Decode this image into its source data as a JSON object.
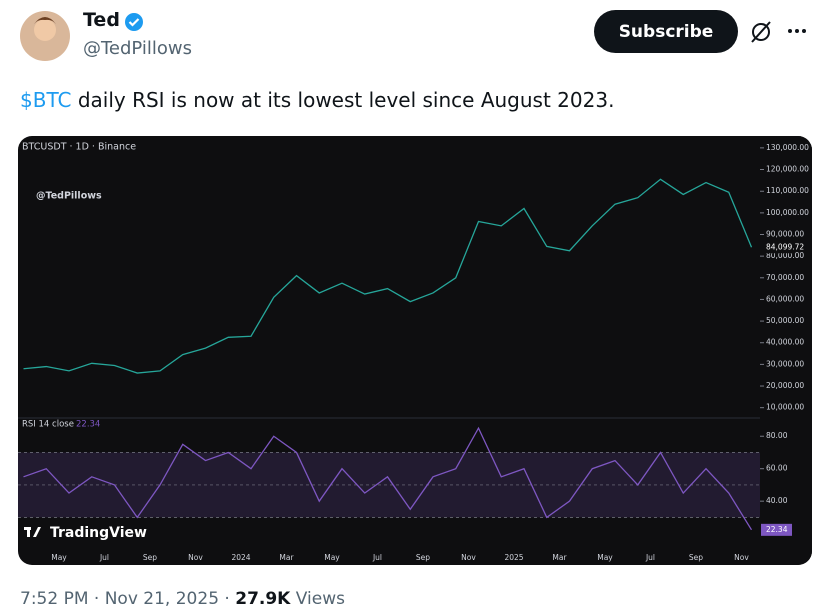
{
  "author": {
    "name": "Ted",
    "handle": "@TedPillows"
  },
  "subscribe_button": "Subscribe",
  "tweet_text": {
    "cashtag": "$BTC",
    "text": " daily RSI is now at its lowest level since August 2023."
  },
  "chart_data": {
    "type": "line",
    "source_label": "BTCUSDT · 1D · Binance",
    "watermark": "@TedPillows",
    "brand": "TradingView",
    "x_axis_labels": [
      "May",
      "Jul",
      "Sep",
      "Nov",
      "2024",
      "Mar",
      "May",
      "Jul",
      "Sep",
      "Nov",
      "2025",
      "Mar",
      "May",
      "Jul",
      "Sep",
      "Nov"
    ],
    "ylim": [
      5000,
      135500
    ],
    "yticks": [
      {
        "value": 130000,
        "label": "130,000.00"
      },
      {
        "value": 120000,
        "label": "120,000.00"
      },
      {
        "value": 110000,
        "label": "110,000.00"
      },
      {
        "value": 100000,
        "label": "100,000.00"
      },
      {
        "value": 90000,
        "label": "90,000.00"
      },
      {
        "value": 80000,
        "label": "80,000.00"
      },
      {
        "value": 70000,
        "label": "70,000.00"
      },
      {
        "value": 60000,
        "label": "60,000.00"
      },
      {
        "value": 50000,
        "label": "50,000.00"
      },
      {
        "value": 40000,
        "label": "40,000.00"
      },
      {
        "value": 30000,
        "label": "30,000.00"
      },
      {
        "value": 20000,
        "label": "20,000.00"
      },
      {
        "value": 10000,
        "label": "10,000.00"
      }
    ],
    "y2lim": [
      13,
      90
    ],
    "y2ticks": [
      {
        "value": 80,
        "label": "80.00"
      },
      {
        "value": 60,
        "label": "60.00"
      },
      {
        "value": 40,
        "label": "40.00"
      }
    ],
    "y2_levels": [
      30,
      50,
      70
    ],
    "series": [
      {
        "name": "BTCUSDT · 1D · Binance",
        "color": "#26a69a",
        "values": [
          28000,
          29000,
          27000,
          30500,
          29500,
          26000,
          27000,
          34500,
          37500,
          42500,
          43000,
          61000,
          71000,
          63000,
          67500,
          62500,
          65000,
          59000,
          63000,
          70000,
          96000,
          94000,
          102000,
          84500,
          82500,
          94000,
          104000,
          107000,
          115500,
          108500,
          114000,
          109500,
          84099.72
        ],
        "value_labels": [
          null,
          null,
          null,
          null,
          null,
          null,
          null,
          null,
          null,
          null,
          null,
          null,
          null,
          null,
          null,
          null,
          null,
          null,
          null,
          null,
          null,
          null,
          null,
          null,
          null,
          null,
          null,
          null,
          null,
          null,
          null,
          null,
          "84,099.72"
        ]
      },
      {
        "name": "RSI 14 close",
        "color": "#7e57c2",
        "axis": "y2",
        "values": [
          55,
          60,
          45,
          55,
          50,
          30,
          50,
          75,
          65,
          70,
          60,
          80,
          70,
          40,
          60,
          45,
          55,
          35,
          55,
          60,
          85,
          55,
          60,
          30,
          40,
          60,
          65,
          50,
          70,
          45,
          60,
          45,
          22.34
        ],
        "value_labels": [
          null,
          null,
          null,
          null,
          null,
          null,
          null,
          null,
          null,
          null,
          null,
          null,
          null,
          null,
          null,
          null,
          null,
          null,
          null,
          null,
          null,
          null,
          null,
          null,
          null,
          null,
          null,
          null,
          null,
          null,
          null,
          null,
          "22.34"
        ]
      }
    ]
  },
  "footer": {
    "time": "7:52 PM",
    "separator": "·",
    "date": "Nov 21, 2025",
    "views_count": "27.9K",
    "views_label": "Views"
  }
}
